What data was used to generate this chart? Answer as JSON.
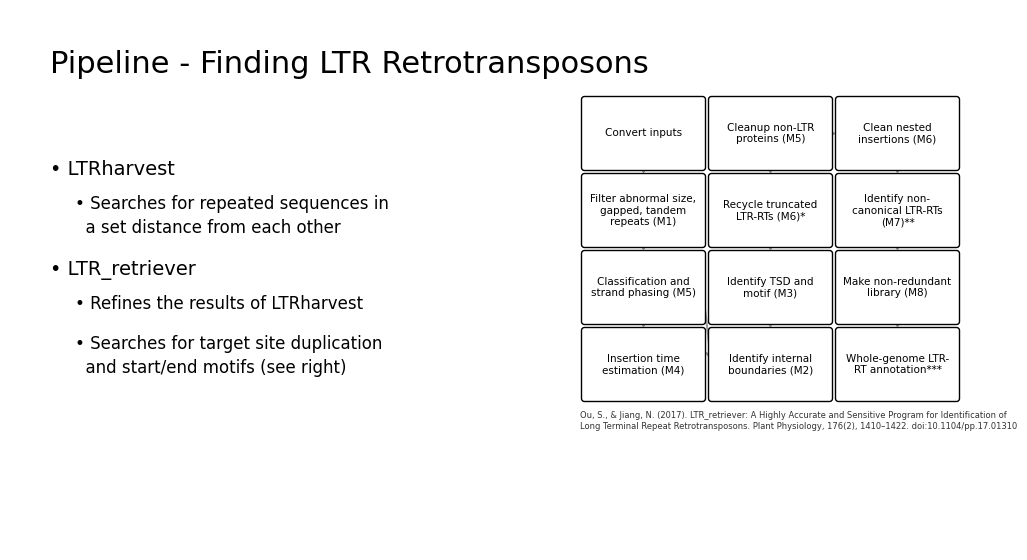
{
  "title": "Pipeline - Finding LTR Retrotransposons",
  "title_fontsize": 22,
  "bg_color": "#ffffff",
  "text_color": "#000000",
  "box_color": "#ffffff",
  "box_edge_color": "#000000",
  "arrow_color": "#999999",
  "grid_boxes": [
    {
      "row": 0,
      "col": 0,
      "text": "Convert inputs"
    },
    {
      "row": 0,
      "col": 1,
      "text": "Cleanup non-LTR\nproteins (M5)"
    },
    {
      "row": 0,
      "col": 2,
      "text": "Clean nested\ninsertions (M6)"
    },
    {
      "row": 1,
      "col": 0,
      "text": "Filter abnormal size,\ngapped, tandem\nrepeats (M1)"
    },
    {
      "row": 1,
      "col": 1,
      "text": "Recycle truncated\nLTR-RTs (M6)*"
    },
    {
      "row": 1,
      "col": 2,
      "text": "Identify non-\ncanonical LTR-RTs\n(M7)**"
    },
    {
      "row": 2,
      "col": 0,
      "text": "Classification and\nstrand phasing (M5)"
    },
    {
      "row": 2,
      "col": 1,
      "text": "Identify TSD and\nmotif (M3)"
    },
    {
      "row": 2,
      "col": 2,
      "text": "Make non-redundant\nlibrary (M8)"
    },
    {
      "row": 3,
      "col": 0,
      "text": "Insertion time\nestimation (M4)"
    },
    {
      "row": 3,
      "col": 1,
      "text": "Identify internal\nboundaries (M2)"
    },
    {
      "row": 3,
      "col": 2,
      "text": "Whole-genome LTR-\nRT annotation***"
    }
  ],
  "citation_line1": "Ou, S., & Jiang, N. (2017). LTR_retriever: A Highly Accurate and Sensitive Program for Identification of",
  "citation_line2": "Long Terminal Repeat Retrotransposons. Plant Physiology, 176(2), 1410–1422. doi:10.1104/pp.17.01310"
}
